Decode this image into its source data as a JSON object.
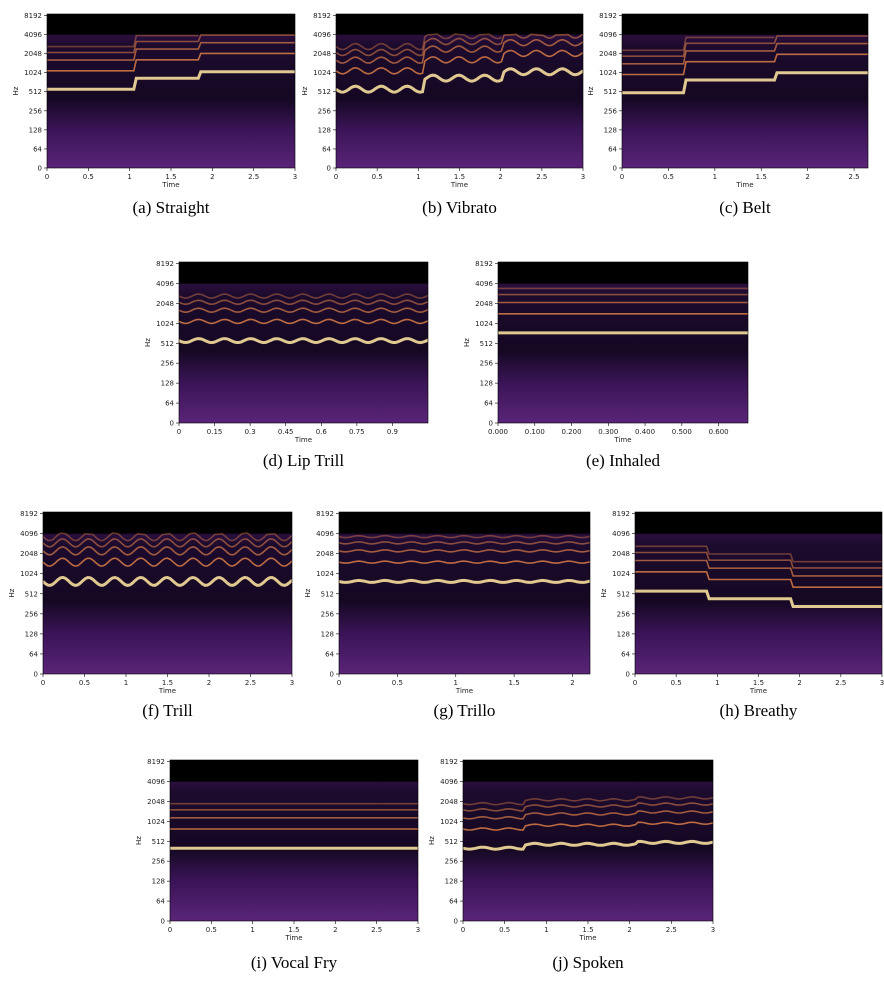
{
  "yticks": [
    "0",
    "64",
    "128",
    "256",
    "512",
    "1024",
    "2048",
    "4096",
    "8192"
  ],
  "panels": [
    {
      "caption": "(a) Straight",
      "ylabel": "Hz",
      "xlabel": "Time",
      "xticks": [
        "0",
        "0.5",
        "1",
        "1.5",
        "2",
        "2.5",
        "3"
      ]
    },
    {
      "caption": "(b) Vibrato",
      "ylabel": "Hz",
      "xlabel": "Time",
      "xticks": [
        "0",
        "0.5",
        "1",
        "1.5",
        "2",
        "2.5",
        "3"
      ]
    },
    {
      "caption": "(c) Belt",
      "ylabel": "Hz",
      "xlabel": "Time",
      "xticks": [
        "0",
        "0.5",
        "1",
        "1.5",
        "2",
        "2.5"
      ]
    },
    {
      "caption": "(d) Lip Trill",
      "ylabel": "Hz",
      "xlabel": "Time",
      "xticks": [
        "0",
        "0.15",
        "0.3",
        "0.45",
        "0.6",
        "0.75",
        "0.9"
      ]
    },
    {
      "caption": "(e) Inhaled",
      "ylabel": "Hz",
      "xlabel": "Time",
      "xticks": [
        "0.000",
        "0.100",
        "0.200",
        "0.300",
        "0.400",
        "0.500",
        "0.600"
      ]
    },
    {
      "caption": "(f) Trill",
      "ylabel": "Hz",
      "xlabel": "Time",
      "xticks": [
        "0",
        "0.5",
        "1",
        "1.5",
        "2",
        "2.5",
        "3"
      ]
    },
    {
      "caption": "(g) Trillo",
      "ylabel": "Hz",
      "xlabel": "Time",
      "xticks": [
        "0",
        "0.5",
        "1",
        "1.5",
        "2"
      ]
    },
    {
      "caption": "(h) Breathy",
      "ylabel": "Hz",
      "xlabel": "Time",
      "xticks": [
        "0",
        "0.5",
        "1",
        "1.5",
        "2",
        "2.5",
        "3"
      ]
    },
    {
      "caption": "(i) Vocal Fry",
      "ylabel": "Hz",
      "xlabel": "Time",
      "xticks": [
        "0",
        "0.5",
        "1",
        "1.5",
        "2",
        "2.5",
        "3"
      ]
    },
    {
      "caption": "(j) Spoken",
      "ylabel": "Hz",
      "xlabel": "Time",
      "xticks": [
        "0",
        "0.5",
        "1",
        "1.5",
        "2",
        "2.5",
        "3"
      ]
    }
  ]
}
